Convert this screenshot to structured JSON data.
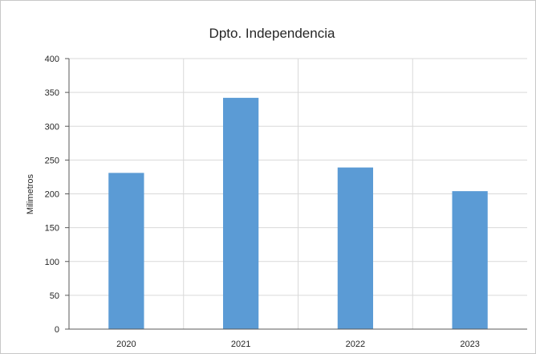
{
  "chart_data": {
    "type": "bar",
    "title": "Dpto. Independencia",
    "xlabel": "",
    "ylabel": "Milimetros",
    "categories": [
      "2020",
      "2021",
      "2022",
      "2023"
    ],
    "values": [
      231,
      342,
      239,
      204
    ],
    "ylim": [
      0,
      400
    ],
    "yticks": [
      "0",
      "50",
      "100",
      "150",
      "200",
      "250",
      "300",
      "350",
      "400"
    ],
    "grid": true,
    "bar_color": "#5b9bd5",
    "grid_color": "#d9d9d9",
    "axis_color": "#595959"
  }
}
